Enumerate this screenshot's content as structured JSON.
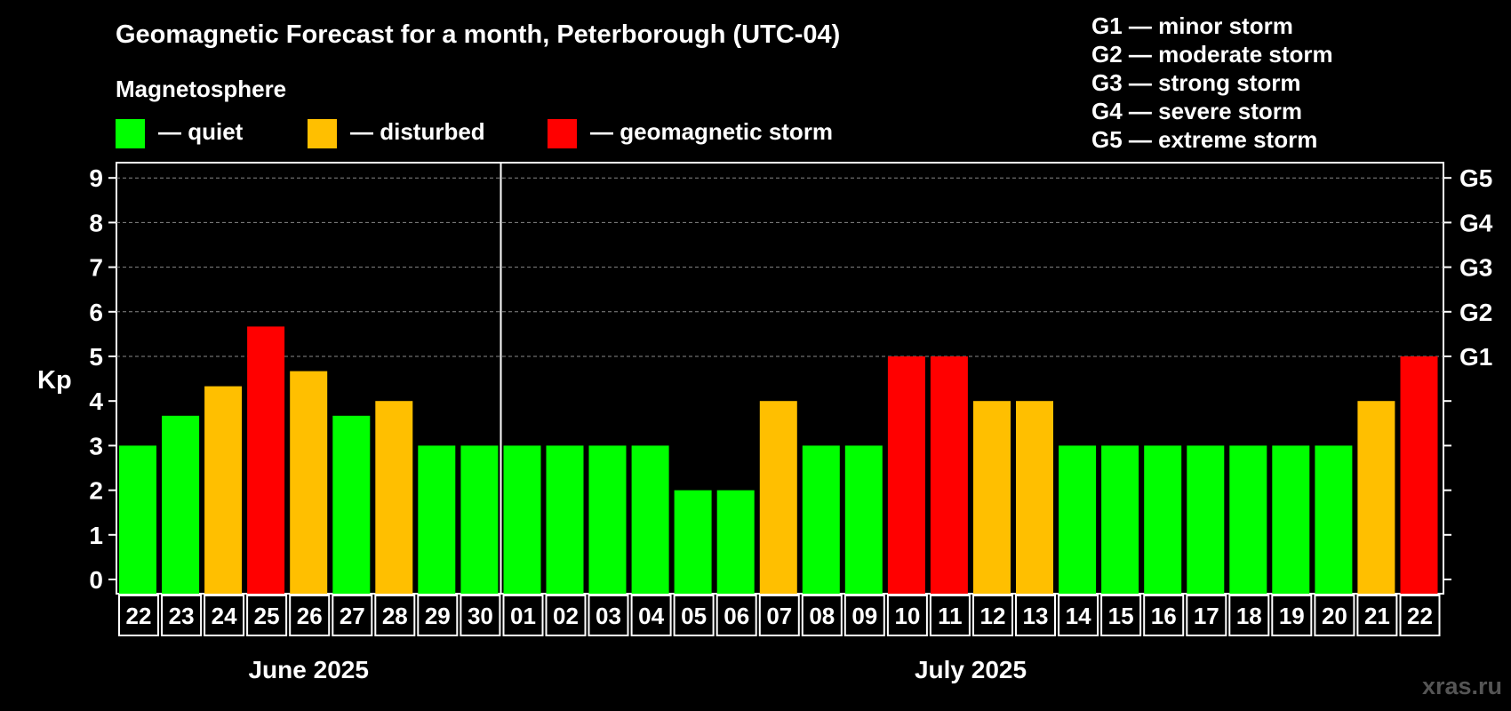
{
  "chart_data": {
    "type": "bar",
    "title": "Geomagnetic Forecast for a month, Peterborough (UTC-04)",
    "subtitle": "Magnetosphere",
    "ylabel": "Kp",
    "ylim": [
      0,
      9
    ],
    "yticks": [
      "0",
      "1",
      "2",
      "3",
      "4",
      "5",
      "6",
      "7",
      "8",
      "9"
    ],
    "right_ticks": [
      {
        "level": 5,
        "label": "G1"
      },
      {
        "level": 6,
        "label": "G2"
      },
      {
        "level": 7,
        "label": "G3"
      },
      {
        "level": 8,
        "label": "G4"
      },
      {
        "level": 9,
        "label": "G5"
      }
    ],
    "legend": [
      {
        "key": "quiet",
        "label": "— quiet",
        "color": "#00ff00"
      },
      {
        "key": "disturbed",
        "label": "— disturbed",
        "color": "#ffbf00"
      },
      {
        "key": "storm",
        "label": "— geomagnetic storm",
        "color": "#ff0000"
      }
    ],
    "g_scale": [
      "G1 — minor storm",
      "G2 — moderate storm",
      "G3 — strong storm",
      "G4 — severe storm",
      "G5 — extreme storm"
    ],
    "months": [
      {
        "label": "June 2025",
        "count": 9
      },
      {
        "label": "July 2025",
        "count": 22
      }
    ],
    "categories": [
      "22",
      "23",
      "24",
      "25",
      "26",
      "27",
      "28",
      "29",
      "30",
      "01",
      "02",
      "03",
      "04",
      "05",
      "06",
      "07",
      "08",
      "09",
      "10",
      "11",
      "12",
      "13",
      "14",
      "15",
      "16",
      "17",
      "18",
      "19",
      "20",
      "21",
      "22"
    ],
    "values": [
      3,
      3.67,
      4.33,
      5.67,
      4.67,
      3.67,
      4,
      3,
      3,
      3,
      3,
      3,
      3,
      2,
      2,
      4,
      3,
      3,
      5,
      5,
      4,
      4,
      3,
      3,
      3,
      3,
      3,
      3,
      3,
      4,
      5
    ],
    "grid": true
  },
  "watermark": "xras.ru"
}
